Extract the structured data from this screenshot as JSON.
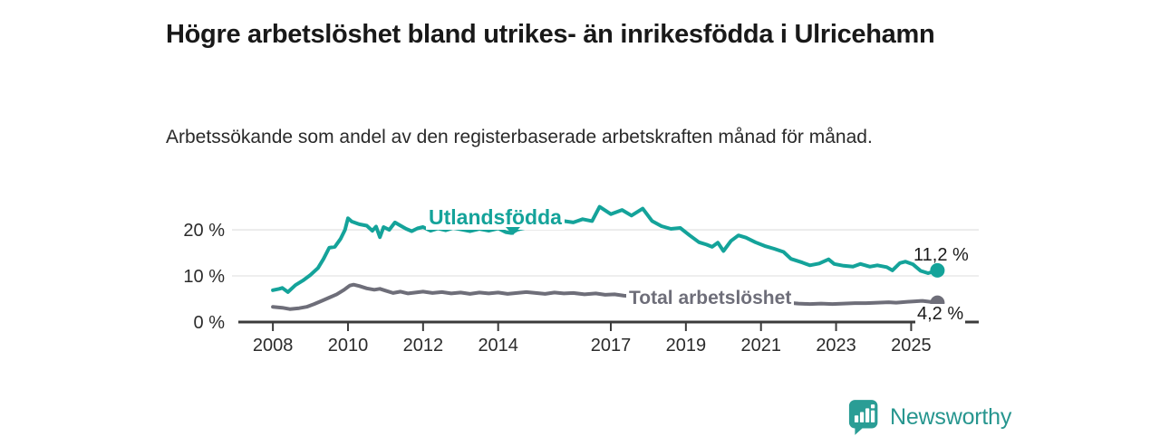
{
  "chart_data": {
    "type": "line",
    "title": "Högre arbetslöshet bland utrikes- än inrikesfödda i Ulricehamn",
    "subtitle": "Arbetssökande som andel av den registerbaserade arbetskraften månad för månad.",
    "x_ticks": [
      2008,
      2010,
      2012,
      2014,
      2017,
      2019,
      2021,
      2023,
      2025
    ],
    "y_ticks": [
      {
        "value": 0,
        "label": "0 %"
      },
      {
        "value": 10,
        "label": "10 %"
      },
      {
        "value": 20,
        "label": "20 %"
      }
    ],
    "xlim": [
      2007.08,
      2026.8
    ],
    "ylim": [
      0,
      25.7
    ],
    "grid": true,
    "grid_color": "#e3e3e3",
    "axis_color": "#3b3b3b",
    "axis_text_color": "#2b2b2b",
    "legend_position": "inline-labels",
    "series": [
      {
        "id": "utlandsfodda",
        "name": "Utlandsfödda",
        "color": "#14a39a",
        "end_label": "11,2 %",
        "end_value": 11.2,
        "points": [
          [
            2008,
            6.9
          ],
          [
            2008.17,
            7.2
          ],
          [
            2008.25,
            7.4
          ],
          [
            2008.4,
            6.5
          ],
          [
            2008.6,
            8
          ],
          [
            2008.8,
            9
          ],
          [
            2009,
            10.2
          ],
          [
            2009.2,
            11.7
          ],
          [
            2009.35,
            13.7
          ],
          [
            2009.5,
            16.1
          ],
          [
            2009.65,
            16.3
          ],
          [
            2009.8,
            18
          ],
          [
            2009.92,
            20
          ],
          [
            2010,
            22.5
          ],
          [
            2010.1,
            21.8
          ],
          [
            2010.3,
            21.2
          ],
          [
            2010.5,
            20.9
          ],
          [
            2010.65,
            19.8
          ],
          [
            2010.75,
            20.7
          ],
          [
            2010.85,
            18.4
          ],
          [
            2010.95,
            20.6
          ],
          [
            2011.1,
            20
          ],
          [
            2011.25,
            21.6
          ],
          [
            2011.4,
            20.9
          ],
          [
            2011.55,
            20.2
          ],
          [
            2011.7,
            19.7
          ],
          [
            2011.85,
            20.3
          ],
          [
            2012,
            20.6
          ],
          [
            2012.2,
            19.8
          ],
          [
            2012.4,
            20.3
          ],
          [
            2012.6,
            19.9
          ],
          [
            2012.8,
            20.4
          ],
          [
            2013,
            20.1
          ],
          [
            2013.25,
            19.7
          ],
          [
            2013.5,
            20.2
          ],
          [
            2013.75,
            19.8
          ],
          [
            2014,
            20.3
          ],
          [
            2014.2,
            19.5
          ],
          [
            2014.35,
            19.3
          ],
          [
            2014.5,
            20
          ],
          [
            2014.75,
            20.5
          ],
          [
            2015,
            20.9
          ],
          [
            2015.25,
            20.5
          ],
          [
            2015.5,
            21.3
          ],
          [
            2015.75,
            21.9
          ],
          [
            2016,
            21.6
          ],
          [
            2016.25,
            22.3
          ],
          [
            2016.5,
            21.9
          ],
          [
            2016.7,
            25
          ],
          [
            2017,
            23.4
          ],
          [
            2017.3,
            24.3
          ],
          [
            2017.55,
            23.1
          ],
          [
            2017.85,
            24.6
          ],
          [
            2018.1,
            21.9
          ],
          [
            2018.35,
            20.8
          ],
          [
            2018.6,
            20.2
          ],
          [
            2018.85,
            20.4
          ],
          [
            2019.1,
            18.8
          ],
          [
            2019.35,
            17.3
          ],
          [
            2019.55,
            16.8
          ],
          [
            2019.7,
            16.3
          ],
          [
            2019.85,
            17.2
          ],
          [
            2020,
            15.4
          ],
          [
            2020.2,
            17.6
          ],
          [
            2020.4,
            18.8
          ],
          [
            2020.6,
            18.3
          ],
          [
            2020.85,
            17.3
          ],
          [
            2021.1,
            16.5
          ],
          [
            2021.35,
            15.9
          ],
          [
            2021.6,
            15.2
          ],
          [
            2021.8,
            13.7
          ],
          [
            2022.1,
            12.9
          ],
          [
            2022.3,
            12.3
          ],
          [
            2022.55,
            12.7
          ],
          [
            2022.8,
            13.6
          ],
          [
            2022.95,
            12.6
          ],
          [
            2023.2,
            12.2
          ],
          [
            2023.45,
            12
          ],
          [
            2023.65,
            12.6
          ],
          [
            2023.9,
            12
          ],
          [
            2024.1,
            12.3
          ],
          [
            2024.35,
            11.9
          ],
          [
            2024.5,
            11.2
          ],
          [
            2024.7,
            12.8
          ],
          [
            2024.85,
            13.1
          ],
          [
            2025.05,
            12.5
          ],
          [
            2025.25,
            11.1
          ],
          [
            2025.45,
            10.6
          ],
          [
            2025.7,
            11.2
          ]
        ]
      },
      {
        "id": "total",
        "name": "Total arbetslöshet",
        "color": "#6e6e79",
        "end_label": "4,2 %",
        "end_value": 4.2,
        "points": [
          [
            2008,
            3.3
          ],
          [
            2008.25,
            3.1
          ],
          [
            2008.45,
            2.8
          ],
          [
            2008.7,
            3
          ],
          [
            2008.9,
            3.3
          ],
          [
            2009.1,
            3.9
          ],
          [
            2009.3,
            4.6
          ],
          [
            2009.5,
            5.3
          ],
          [
            2009.7,
            6
          ],
          [
            2009.9,
            7
          ],
          [
            2010.05,
            7.9
          ],
          [
            2010.15,
            8.1
          ],
          [
            2010.3,
            7.8
          ],
          [
            2010.5,
            7.3
          ],
          [
            2010.7,
            7
          ],
          [
            2010.85,
            7.2
          ],
          [
            2011,
            6.8
          ],
          [
            2011.2,
            6.3
          ],
          [
            2011.4,
            6.6
          ],
          [
            2011.6,
            6.2
          ],
          [
            2011.8,
            6.4
          ],
          [
            2012,
            6.6
          ],
          [
            2012.25,
            6.3
          ],
          [
            2012.5,
            6.5
          ],
          [
            2012.75,
            6.2
          ],
          [
            2013,
            6.4
          ],
          [
            2013.25,
            6.1
          ],
          [
            2013.5,
            6.4
          ],
          [
            2013.75,
            6.2
          ],
          [
            2014,
            6.4
          ],
          [
            2014.25,
            6.1
          ],
          [
            2014.5,
            6.3
          ],
          [
            2014.75,
            6.5
          ],
          [
            2015,
            6.3
          ],
          [
            2015.25,
            6.1
          ],
          [
            2015.5,
            6.4
          ],
          [
            2015.75,
            6.2
          ],
          [
            2016,
            6.3
          ],
          [
            2016.3,
            6
          ],
          [
            2016.6,
            6.2
          ],
          [
            2016.85,
            5.9
          ],
          [
            2017.1,
            6
          ],
          [
            2017.35,
            5.7
          ],
          [
            2017.6,
            5.6
          ],
          [
            2017.85,
            5.4
          ],
          [
            2018.1,
            5.3
          ],
          [
            2018.4,
            5.1
          ],
          [
            2018.7,
            5
          ],
          [
            2019,
            4.9
          ],
          [
            2019.3,
            4.8
          ],
          [
            2019.6,
            4.7
          ],
          [
            2019.9,
            4.8
          ],
          [
            2020.2,
            5.2
          ],
          [
            2020.5,
            5.5
          ],
          [
            2020.8,
            5.3
          ],
          [
            2021.1,
            5
          ],
          [
            2021.4,
            4.6
          ],
          [
            2021.7,
            4.2
          ],
          [
            2022,
            4
          ],
          [
            2022.3,
            3.9
          ],
          [
            2022.6,
            4
          ],
          [
            2022.9,
            3.9
          ],
          [
            2023.2,
            4
          ],
          [
            2023.5,
            4.1
          ],
          [
            2023.8,
            4.1
          ],
          [
            2024.1,
            4.2
          ],
          [
            2024.4,
            4.3
          ],
          [
            2024.6,
            4.2
          ],
          [
            2024.9,
            4.4
          ],
          [
            2025.1,
            4.5
          ],
          [
            2025.3,
            4.6
          ],
          [
            2025.5,
            4.4
          ],
          [
            2025.7,
            4.2
          ]
        ]
      }
    ]
  },
  "footer": {
    "brand": "Newsworthy",
    "brand_color": "#27968f",
    "icon": "bar-chart-speech-bubble"
  }
}
